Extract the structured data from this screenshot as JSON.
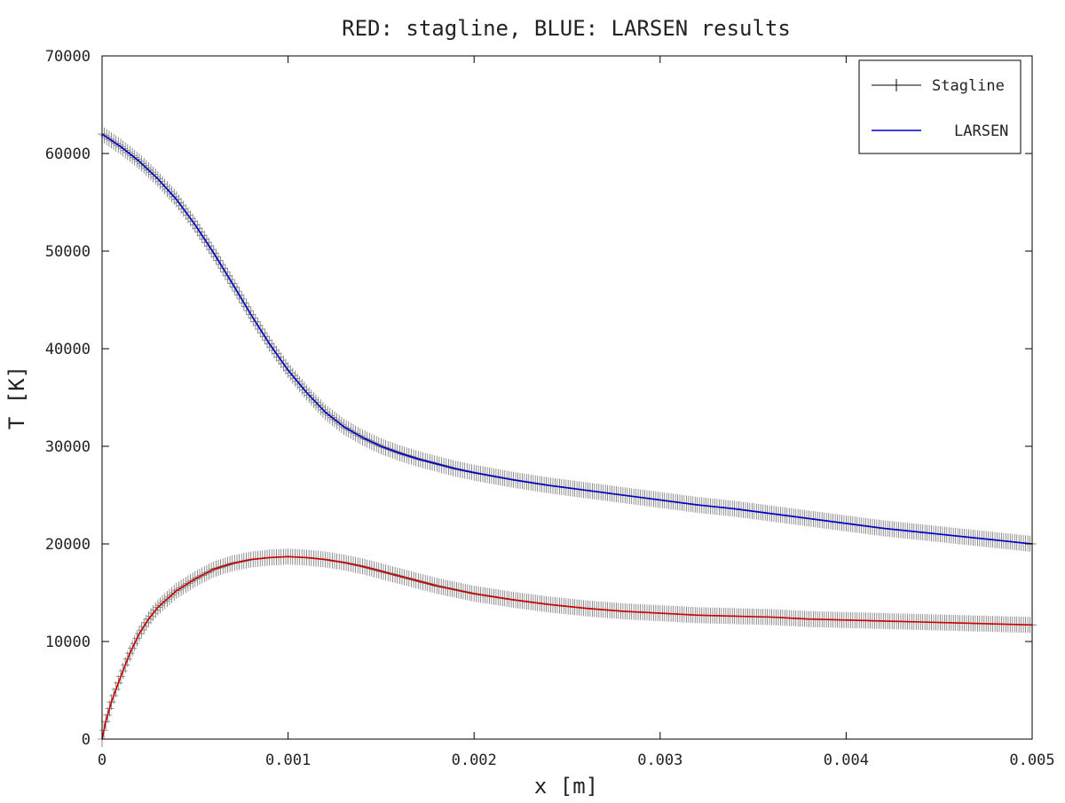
{
  "chart_data": {
    "type": "line",
    "title": "RED: stagline, BLUE: LARSEN results",
    "xlabel": "x [m]",
    "ylabel": "T [K]",
    "xlim": [
      0,
      0.005
    ],
    "ylim": [
      0,
      70000
    ],
    "x_ticks": [
      "0",
      "0.001",
      "0.002",
      "0.003",
      "0.004",
      "0.005"
    ],
    "y_ticks": [
      "0",
      "10000",
      "20000",
      "30000",
      "40000",
      "50000",
      "60000",
      "70000"
    ],
    "grid": false,
    "legend": {
      "placement": "top-right",
      "entries": [
        {
          "label": "Stagline",
          "marker": "plus",
          "color": "#000000"
        },
        {
          "label": "LARSEN",
          "marker": "none",
          "color": "#0000cc"
        }
      ]
    },
    "series": [
      {
        "label": "Stagline",
        "color": "#000000",
        "marker": "plus",
        "curves": [
          {
            "x": [
              0,
              0.0001,
              0.0002,
              0.0003,
              0.0004,
              0.0005,
              0.0006,
              0.0007,
              0.0008,
              0.0009,
              0.001,
              0.0011,
              0.0012,
              0.0013,
              0.0014,
              0.0015,
              0.0016,
              0.0017,
              0.0018,
              0.0019,
              0.002,
              0.0022,
              0.0024,
              0.0026,
              0.0028,
              0.003,
              0.0032,
              0.0034,
              0.0036,
              0.0038,
              0.004,
              0.0042,
              0.0044,
              0.0046,
              0.0048,
              0.005
            ],
            "y": [
              62000,
              60700,
              59200,
              57400,
              55300,
              52700,
              49800,
              46700,
              43500,
              40500,
              37800,
              35500,
              33500,
              32000,
              30900,
              30000,
              29300,
              28700,
              28200,
              27700,
              27300,
              26600,
              26000,
              25500,
              25000,
              24500,
              24000,
              23600,
              23100,
              22600,
              22100,
              21600,
              21200,
              20800,
              20400,
              20000
            ]
          },
          {
            "x": [
              0,
              2e-05,
              5e-05,
              0.0001,
              0.00015,
              0.0002,
              0.00025,
              0.0003,
              0.0004,
              0.0005,
              0.0006,
              0.0007,
              0.0008,
              0.0009,
              0.001,
              0.0011,
              0.0012,
              0.0013,
              0.0014,
              0.0015,
              0.0016,
              0.0017,
              0.0018,
              0.002,
              0.0022,
              0.0024,
              0.0026,
              0.0028,
              0.003,
              0.0032,
              0.0034,
              0.0036,
              0.0038,
              0.004,
              0.0042,
              0.0044,
              0.0046,
              0.0048,
              0.005
            ],
            "y": [
              0,
              1800,
              3800,
              6400,
              8800,
              10800,
              12300,
              13500,
              15200,
              16400,
              17400,
              18000,
              18400,
              18600,
              18700,
              18600,
              18400,
              18100,
              17700,
              17200,
              16700,
              16200,
              15700,
              14900,
              14300,
              13800,
              13400,
              13100,
              12900,
              12700,
              12600,
              12500,
              12300,
              12200,
              12100,
              12000,
              11900,
              11800,
              11700
            ]
          }
        ]
      },
      {
        "label": "LARSEN",
        "color": "#0000cc",
        "marker": "none",
        "curves": [
          {
            "x": [
              0,
              0.0001,
              0.0002,
              0.0003,
              0.0004,
              0.0005,
              0.0006,
              0.0007,
              0.0008,
              0.0009,
              0.001,
              0.0011,
              0.0012,
              0.0013,
              0.0014,
              0.0015,
              0.0016,
              0.0017,
              0.0018,
              0.0019,
              0.002,
              0.0022,
              0.0024,
              0.0026,
              0.0028,
              0.003,
              0.0032,
              0.0034,
              0.0036,
              0.0038,
              0.004,
              0.0042,
              0.0044,
              0.0046,
              0.0048,
              0.005
            ],
            "y": [
              62000,
              60700,
              59200,
              57400,
              55300,
              52700,
              49800,
              46700,
              43500,
              40500,
              37800,
              35500,
              33500,
              32000,
              30900,
              30000,
              29300,
              28700,
              28200,
              27700,
              27300,
              26600,
              26000,
              25500,
              25000,
              24500,
              24000,
              23600,
              23100,
              22600,
              22100,
              21600,
              21200,
              20800,
              20400,
              20000
            ]
          }
        ]
      },
      {
        "label": "",
        "color": "#cc0000",
        "marker": "none",
        "curves": [
          {
            "x": [
              0,
              2e-05,
              5e-05,
              0.0001,
              0.00015,
              0.0002,
              0.00025,
              0.0003,
              0.0004,
              0.0005,
              0.0006,
              0.0007,
              0.0008,
              0.0009,
              0.001,
              0.0011,
              0.0012,
              0.0013,
              0.0014,
              0.0015,
              0.0016,
              0.0017,
              0.0018,
              0.002,
              0.0022,
              0.0024,
              0.0026,
              0.0028,
              0.003,
              0.0032,
              0.0034,
              0.0036,
              0.0038,
              0.004,
              0.0042,
              0.0044,
              0.0046,
              0.0048,
              0.005
            ],
            "y": [
              0,
              1800,
              3800,
              6400,
              8800,
              10800,
              12300,
              13500,
              15200,
              16400,
              17400,
              18000,
              18400,
              18600,
              18700,
              18600,
              18400,
              18100,
              17700,
              17200,
              16700,
              16200,
              15700,
              14900,
              14300,
              13800,
              13400,
              13100,
              12900,
              12700,
              12600,
              12500,
              12300,
              12200,
              12100,
              12000,
              11900,
              11800,
              11700
            ]
          }
        ]
      }
    ]
  }
}
